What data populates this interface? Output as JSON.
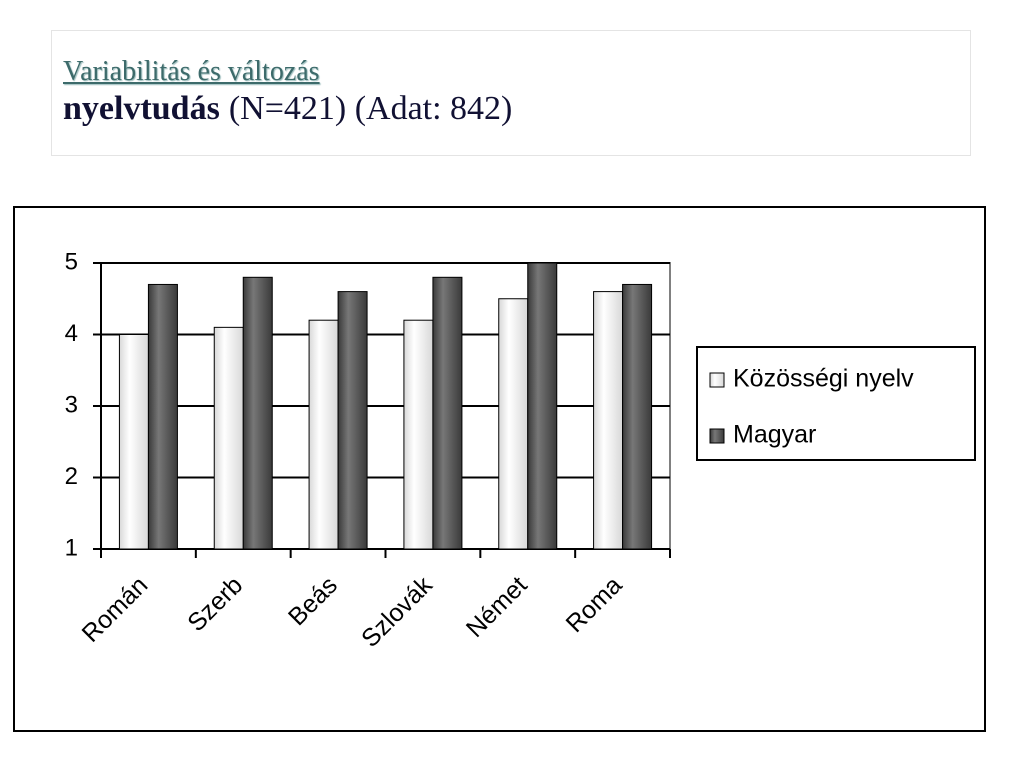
{
  "header": {
    "title": "Variabilitás és változás",
    "subtitle_bold": "nyelvtudás",
    "subtitle_rest": "(N=421) (Adat: 842)"
  },
  "chart_data": {
    "type": "bar",
    "categories": [
      "Román",
      "Szerb",
      "Beás",
      "Szlovák",
      "Német",
      "Roma"
    ],
    "series": [
      {
        "name": "Közösségi nyelv",
        "color": "#d8d8d8",
        "values": [
          4.0,
          4.1,
          4.2,
          4.2,
          4.5,
          4.6
        ]
      },
      {
        "name": "Magyar",
        "color": "#3a3a3a",
        "values": [
          4.7,
          4.8,
          4.6,
          4.8,
          5.0,
          4.7
        ]
      }
    ],
    "ylim": [
      1,
      5
    ],
    "yticks": [
      1,
      2,
      3,
      4,
      5
    ],
    "grid": true,
    "legend": "right"
  }
}
